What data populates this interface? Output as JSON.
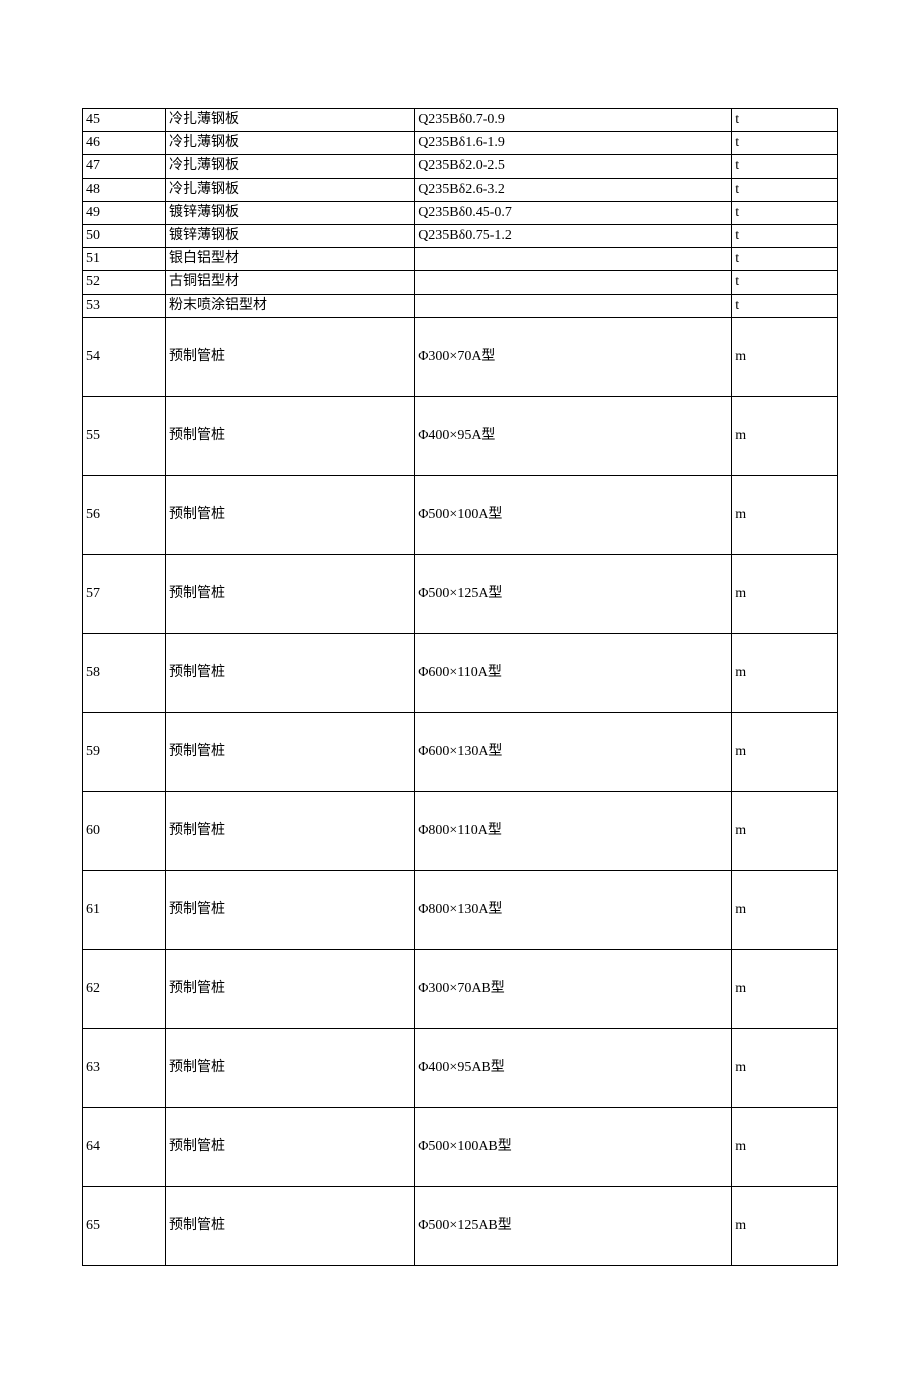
{
  "table": {
    "columns": [
      {
        "key": "index",
        "class": "col-index"
      },
      {
        "key": "name",
        "class": "col-name"
      },
      {
        "key": "spec",
        "class": "col-spec"
      },
      {
        "key": "unit",
        "class": "col-unit"
      }
    ],
    "rows": [
      {
        "height": "short",
        "index": "45",
        "name": "冷扎薄钢板",
        "spec": "Q235Bδ0.7-0.9",
        "unit": "t"
      },
      {
        "height": "short",
        "index": "46",
        "name": "冷扎薄钢板",
        "spec": "Q235Bδ1.6-1.9",
        "unit": "t"
      },
      {
        "height": "short",
        "index": "47",
        "name": "冷扎薄钢板",
        "spec": "Q235Bδ2.0-2.5",
        "unit": "t"
      },
      {
        "height": "short",
        "index": "48",
        "name": "冷扎薄钢板",
        "spec": "Q235Bδ2.6-3.2",
        "unit": "t"
      },
      {
        "height": "short",
        "index": "49",
        "name": "镀锌薄钢板",
        "spec": "Q235Bδ0.45-0.7",
        "unit": "t"
      },
      {
        "height": "short",
        "index": "50",
        "name": "镀锌薄钢板",
        "spec": "Q235Bδ0.75-1.2",
        "unit": "t"
      },
      {
        "height": "short",
        "index": "51",
        "name": "银白铝型材",
        "spec": "",
        "unit": "t"
      },
      {
        "height": "short",
        "index": "52",
        "name": "古铜铝型材",
        "spec": "",
        "unit": "t"
      },
      {
        "height": "short",
        "index": "53",
        "name": "粉末喷涂铝型材",
        "spec": "",
        "unit": "t"
      },
      {
        "height": "tall",
        "index": "54",
        "name": "预制管桩",
        "spec": "Φ300×70A型",
        "unit": "m"
      },
      {
        "height": "tall",
        "index": "55",
        "name": "预制管桩",
        "spec": "Φ400×95A型",
        "unit": "m"
      },
      {
        "height": "tall",
        "index": "56",
        "name": "预制管桩",
        "spec": "Φ500×100A型",
        "unit": "m"
      },
      {
        "height": "tall",
        "index": "57",
        "name": "预制管桩",
        "spec": "Φ500×125A型",
        "unit": "m"
      },
      {
        "height": "tall",
        "index": "58",
        "name": "预制管桩",
        "spec": "Φ600×110A型",
        "unit": "m"
      },
      {
        "height": "tall",
        "index": "59",
        "name": "预制管桩",
        "spec": "Φ600×130A型",
        "unit": "m"
      },
      {
        "height": "tall",
        "index": "60",
        "name": "预制管桩",
        "spec": "Φ800×110A型",
        "unit": "m"
      },
      {
        "height": "tall",
        "index": "61",
        "name": "预制管桩",
        "spec": "Φ800×130A型",
        "unit": "m"
      },
      {
        "height": "tall",
        "index": "62",
        "name": "预制管桩",
        "spec": "Φ300×70AB型",
        "unit": "m"
      },
      {
        "height": "tall",
        "index": "63",
        "name": "预制管桩",
        "spec": "Φ400×95AB型",
        "unit": "m"
      },
      {
        "height": "tall",
        "index": "64",
        "name": "预制管桩",
        "spec": "Φ500×100AB型",
        "unit": "m"
      },
      {
        "height": "tall",
        "index": "65",
        "name": "预制管桩",
        "spec": "Φ500×125AB型",
        "unit": "m"
      }
    ],
    "border_color": "#000000",
    "background_color": "#ffffff",
    "text_color": "#000000",
    "font_size": 14,
    "short_row_height": 19,
    "tall_row_height": 79
  }
}
